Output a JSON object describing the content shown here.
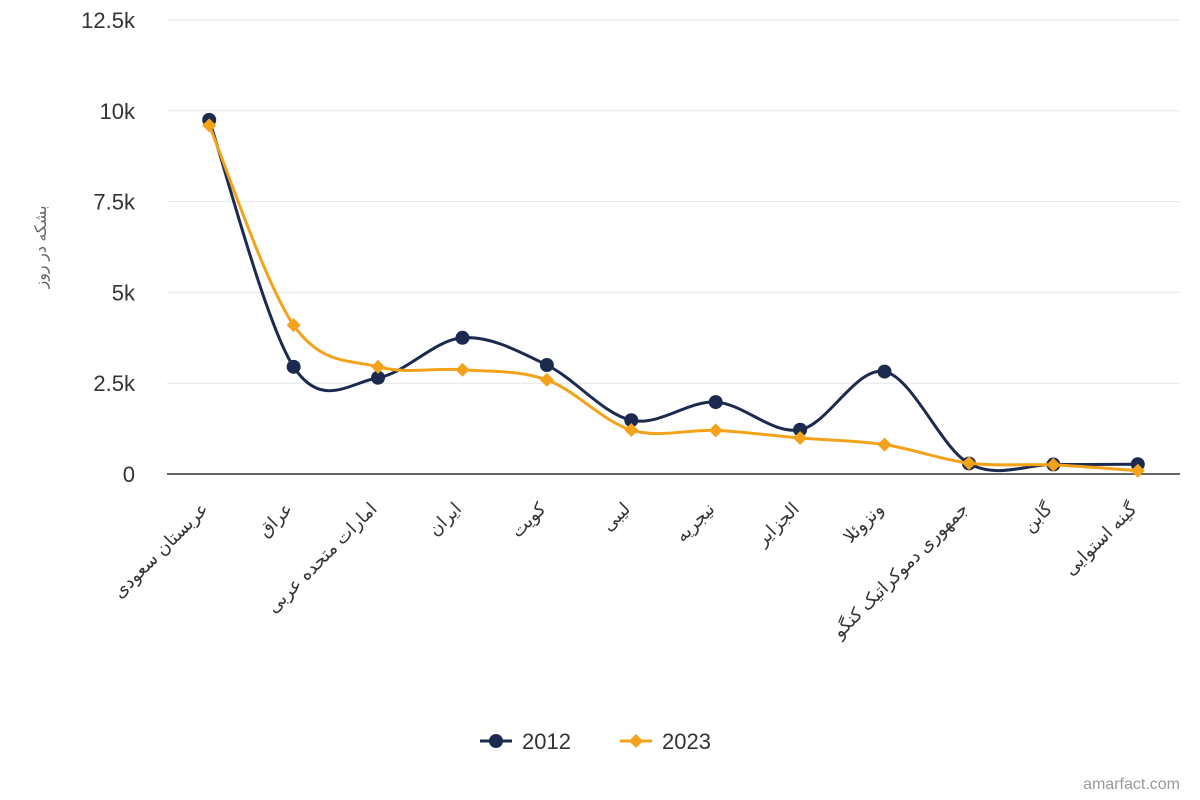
{
  "chart_data": {
    "type": "line",
    "categories": [
      "عربستان سعودی",
      "عراق",
      "امارات متحده عربی",
      "ایران",
      "کویت",
      "لیبی",
      "نیجریه",
      "الجزایر",
      "ونزوئلا",
      "جمهوری دموکراتیک کنگو",
      "گابن",
      "گینه استوایی"
    ],
    "series": [
      {
        "name": "2012",
        "color": "#1b2a4e",
        "marker": "circle",
        "values": [
          9750,
          2950,
          2650,
          3750,
          3000,
          1480,
          1980,
          1220,
          2820,
          290,
          260,
          270
        ]
      },
      {
        "name": "2023",
        "color": "#f5a21b",
        "marker": "diamond",
        "values": [
          9600,
          4100,
          2950,
          2870,
          2590,
          1210,
          1200,
          990,
          810,
          300,
          250,
          90
        ]
      }
    ],
    "ylabel": "بشکه در روز",
    "ylim": [
      0,
      12500
    ],
    "yticks": [
      0,
      2500,
      5000,
      7500,
      10000,
      12500
    ],
    "ytick_labels": [
      "0",
      "2.5k",
      "5k",
      "7.5k",
      "10k",
      "12.5k"
    ],
    "grid": true,
    "legend": "bottom-center",
    "credit": "amarfact.com"
  }
}
